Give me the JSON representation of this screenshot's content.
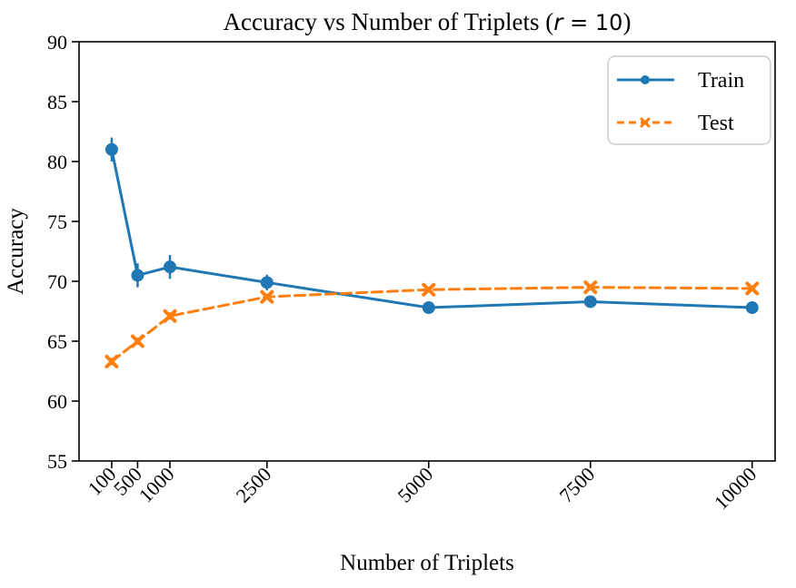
{
  "chart_data": {
    "type": "line",
    "title": {
      "full": "Accuracy vs Number of Triplets (r = 10)",
      "prefix": "Accuracy vs Number of Triplets (",
      "math_var": "r",
      "math_rest": " = 10",
      "close": ")"
    },
    "xlabel": "Number of Triplets",
    "ylabel": "Accuracy",
    "x": [
      100,
      500,
      1000,
      2500,
      5000,
      7500,
      10000
    ],
    "xtick_labels": [
      "100",
      "500",
      "1000",
      "2500",
      "5000",
      "7500",
      "10000"
    ],
    "yticks": [
      55,
      60,
      65,
      70,
      75,
      80,
      85,
      90
    ],
    "xlim": [
      -405,
      10355
    ],
    "ylim": [
      55,
      90
    ],
    "grid": false,
    "legend_position": "upper right",
    "background_color": "#ffffff",
    "series": [
      {
        "name": "Train",
        "color": "#1f77b4",
        "line_style": "solid",
        "marker": "circle",
        "values": [
          81.0,
          70.5,
          71.2,
          69.9,
          67.8,
          68.3,
          67.8
        ],
        "yerr": [
          1.0,
          1.0,
          1.0,
          0.65,
          0.3,
          0.3,
          0.3
        ]
      },
      {
        "name": "Test",
        "color": "#ff7f0e",
        "line_style": "dashed",
        "marker": "x",
        "values": [
          63.3,
          65.0,
          67.1,
          68.7,
          69.3,
          69.5,
          69.4
        ],
        "yerr": [
          0.3,
          0.3,
          0.3,
          0.25,
          0.2,
          0.2,
          0.25
        ]
      }
    ]
  }
}
